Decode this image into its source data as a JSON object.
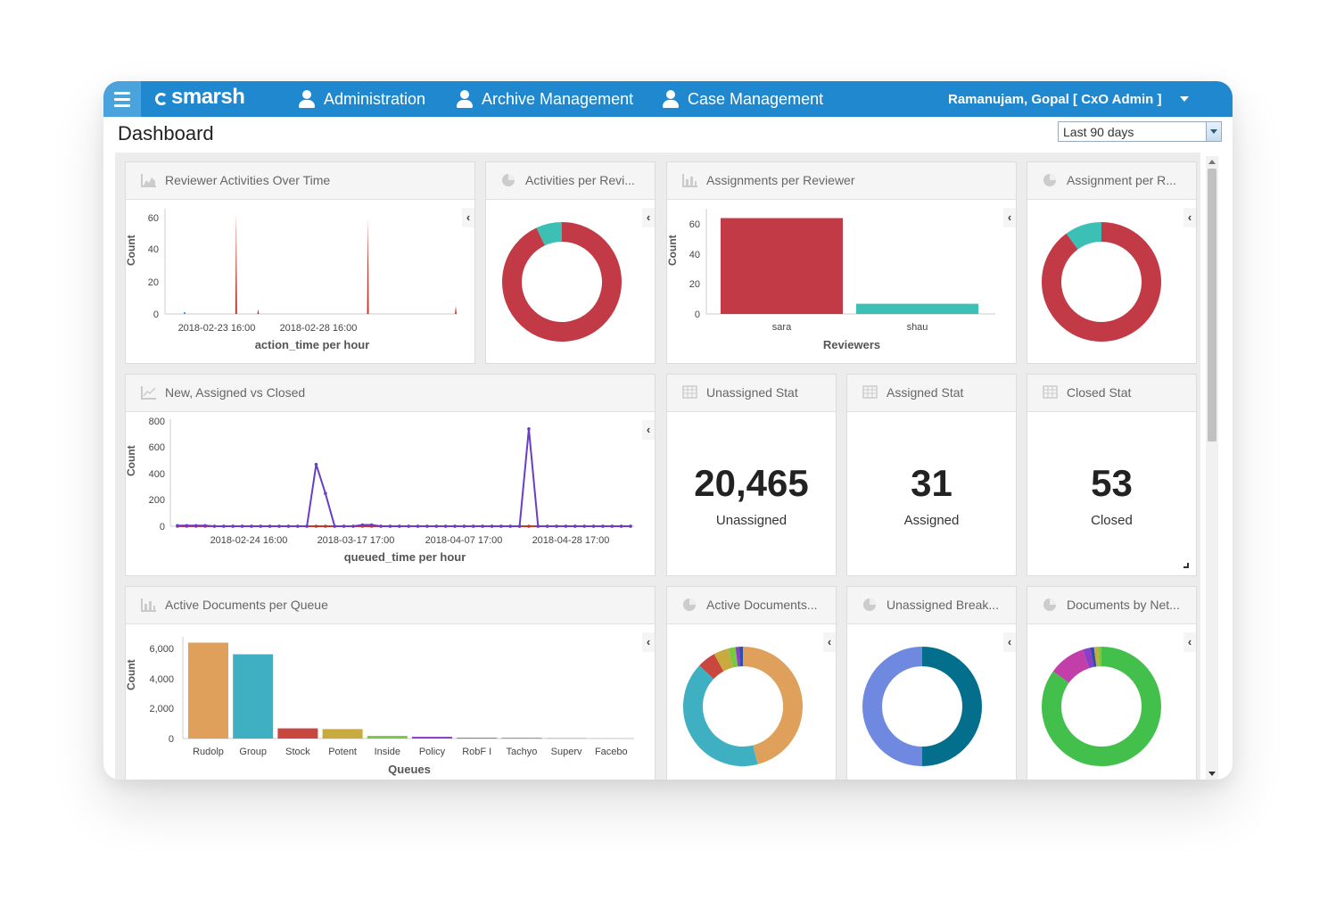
{
  "header": {
    "brand": "smarsh",
    "nav": [
      {
        "label": "Administration"
      },
      {
        "label": "Archive Management"
      },
      {
        "label": "Case Management"
      }
    ],
    "user": "Ramanujam, Gopal [ CxO Admin ]"
  },
  "page": {
    "title": "Dashboard",
    "date_range": "Last 90 days"
  },
  "panels": {
    "reviewer_activities": {
      "title": "Reviewer Activities Over Time",
      "ylabel": "Count",
      "xlabel": "action_time per hour",
      "yticks": [
        "60",
        "40",
        "20",
        "0"
      ],
      "xticks": [
        "2018-02-23 16:00",
        "2018-02-28 16:00"
      ]
    },
    "activities_per_reviewer": {
      "title": "Activities per Revi..."
    },
    "assignments_per_reviewer": {
      "title": "Assignments per Reviewer",
      "ylabel": "Count",
      "xlabel": "Reviewers",
      "yticks": [
        "60",
        "40",
        "20",
        "0"
      ]
    },
    "assignment_per_r": {
      "title": "Assignment per R..."
    },
    "new_assigned_closed": {
      "title": "New, Assigned vs Closed",
      "ylabel": "Count",
      "xlabel": "queued_time per hour",
      "yticks": [
        "800",
        "600",
        "400",
        "200",
        "0"
      ],
      "xticks": [
        "2018-02-24 16:00",
        "2018-03-17 17:00",
        "2018-04-07 17:00",
        "2018-04-28 17:00"
      ]
    },
    "unassigned_stat": {
      "title": "Unassigned Stat",
      "value": "20,465",
      "label": "Unassigned"
    },
    "assigned_stat": {
      "title": "Assigned Stat",
      "value": "31",
      "label": "Assigned"
    },
    "closed_stat": {
      "title": "Closed Stat",
      "value": "53",
      "label": "Closed"
    },
    "active_documents_per_queue": {
      "title": "Active Documents per Queue",
      "ylabel": "Count",
      "xlabel": "Queues",
      "yticks": [
        "6,000",
        "4,000",
        "2,000",
        "0"
      ]
    },
    "active_documents": {
      "title": "Active Documents..."
    },
    "unassigned_break": {
      "title": "Unassigned Break..."
    },
    "documents_by_net": {
      "title": "Documents by Net..."
    }
  },
  "chart_data": [
    {
      "type": "area",
      "title": "Reviewer Activities Over Time",
      "xlabel": "action_time per hour",
      "ylabel": "Count",
      "ylim": [
        0,
        60
      ],
      "series": [
        {
          "color": "#c0392b",
          "spikes": [
            0,
            0,
            0,
            63,
            3,
            0,
            0,
            0,
            0,
            60,
            0,
            0,
            0,
            5
          ]
        }
      ]
    },
    {
      "type": "pie",
      "title": "Activities per Revi...",
      "values": [
        93,
        7
      ],
      "colors": [
        "#c23a45",
        "#3cbfb4"
      ]
    },
    {
      "type": "bar",
      "title": "Assignments per Reviewer",
      "categories": [
        "sara",
        "shau"
      ],
      "values": [
        66,
        7
      ],
      "colors": [
        "#c23a45",
        "#3cbfb4"
      ],
      "xlabel": "Reviewers",
      "ylabel": "Count",
      "ylim": [
        0,
        70
      ]
    },
    {
      "type": "pie",
      "title": "Assignment per R...",
      "values": [
        90,
        10
      ],
      "colors": [
        "#c23a45",
        "#3cbfb4"
      ]
    },
    {
      "type": "line",
      "title": "New, Assigned vs Closed",
      "xlabel": "queued_time per hour",
      "ylabel": "Count",
      "ylim": [
        0,
        800
      ],
      "series": [
        {
          "color": "#c0392b",
          "values": [
            0,
            0,
            0,
            0,
            0,
            0,
            0,
            0,
            0,
            0,
            0,
            0,
            0,
            0,
            0,
            0,
            0,
            0,
            0,
            0,
            0,
            0,
            0,
            0,
            0,
            0,
            0,
            0,
            0,
            0,
            0,
            0,
            0,
            0,
            0,
            0,
            0,
            0,
            0,
            0,
            0,
            0,
            0,
            0,
            0,
            0,
            0,
            0,
            0,
            0
          ]
        },
        {
          "color": "#6a3dc8",
          "values": [
            5,
            5,
            5,
            5,
            0,
            0,
            0,
            0,
            0,
            0,
            0,
            0,
            0,
            0,
            0,
            470,
            250,
            0,
            0,
            0,
            10,
            10,
            0,
            0,
            0,
            0,
            0,
            0,
            0,
            0,
            0,
            0,
            0,
            0,
            0,
            0,
            0,
            0,
            740,
            0,
            0,
            0,
            0,
            0,
            0,
            0,
            0,
            0,
            0,
            0
          ]
        }
      ]
    },
    {
      "type": "bar",
      "title": "Active Documents per Queue",
      "categories": [
        "Rudolp",
        "Group",
        "Stock",
        "Potent",
        "Inside",
        "Policy",
        "RobF I",
        "Tachyo",
        "Superv",
        "Facebo"
      ],
      "values": [
        6600,
        5800,
        700,
        650,
        180,
        120,
        50,
        20,
        10,
        5
      ],
      "colors": [
        "#dea05a",
        "#3fb0c2",
        "#c9473f",
        "#c8aa3e",
        "#7ac943",
        "#8a3fc8",
        "#d15aa3",
        "#999999",
        "#cccccc",
        "#dddddd"
      ],
      "xlabel": "Queues",
      "ylabel": "Count",
      "ylim": [
        0,
        7000
      ]
    },
    {
      "type": "pie",
      "title": "Active Documents...",
      "values": [
        46,
        41,
        5,
        4,
        2,
        1,
        1
      ],
      "colors": [
        "#dea05a",
        "#3fb0c2",
        "#c9473f",
        "#c8aa3e",
        "#7ac943",
        "#8a3fc8",
        "#2e4fa6"
      ]
    },
    {
      "type": "pie",
      "title": "Unassigned Break...",
      "values": [
        50,
        50
      ],
      "colors": [
        "#036f8d",
        "#7089e0"
      ]
    },
    {
      "type": "pie",
      "title": "Documents by Net...",
      "values": [
        85,
        10,
        2,
        1,
        1,
        1
      ],
      "colors": [
        "#43c04c",
        "#c23ea8",
        "#8a3fc8",
        "#2e4fa6",
        "#c8aa3e",
        "#7ac943"
      ]
    }
  ]
}
